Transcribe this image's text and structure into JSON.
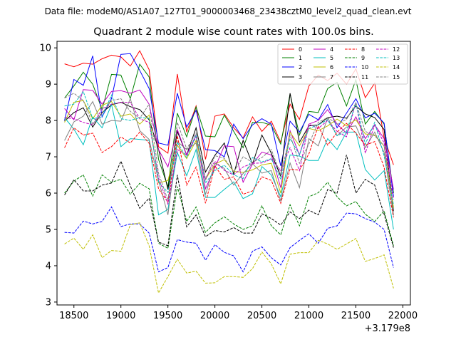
{
  "header": {
    "suptitle": "Data file: modeM0/AS1A07_127T01_9000003468_23438cztM0_level2_quad_clean.evt",
    "title": "Quadrant 2 module wise count rates with 100.0s bins."
  },
  "chart_data": {
    "type": "line",
    "title": "Quadrant 2 module wise count rates with 100.0s bins.",
    "xlabel": "",
    "ylabel": "",
    "x_offset_label": "+3.179e8",
    "xlim": [
      18320,
      22080
    ],
    "ylim": [
      2.92,
      10.18
    ],
    "grid": false,
    "legend_position": "top-right",
    "xticks": [
      18500,
      19000,
      19500,
      20000,
      20500,
      21000,
      21500,
      22000
    ],
    "xtick_labels": [
      "18500",
      "19000",
      "19500",
      "20000",
      "20500",
      "21000",
      "21500",
      "22000"
    ],
    "yticks": [
      3,
      4,
      5,
      6,
      7,
      8,
      9,
      10
    ],
    "ytick_labels": [
      "3",
      "4",
      "5",
      "6",
      "7",
      "8",
      "9",
      "10"
    ],
    "x": [
      18400,
      18500,
      18600,
      18700,
      18800,
      18900,
      19000,
      19100,
      19200,
      19300,
      19400,
      19500,
      19600,
      19700,
      19800,
      19900,
      20000,
      20100,
      20200,
      20300,
      20400,
      20500,
      20600,
      20700,
      20800,
      20900,
      21000,
      21100,
      21200,
      21300,
      21400,
      21500,
      21600,
      21700,
      21800,
      21900
    ],
    "series": [
      {
        "name": "0",
        "color": "#ff0000",
        "dash": "solid",
        "values": [
          9.56,
          9.48,
          9.58,
          9.55,
          9.7,
          9.8,
          9.75,
          9.5,
          9.92,
          9.4,
          7.28,
          7.1,
          9.28,
          7.68,
          8.4,
          6.93,
          8.12,
          8.18,
          7.8,
          7.52,
          8.1,
          7.7,
          7.98,
          7.4,
          8.45,
          8.03,
          8.95,
          9.25,
          9.1,
          9.3,
          9.0,
          9.42,
          8.63,
          9.03,
          7.52,
          6.78
        ]
      },
      {
        "name": "1",
        "color": "#008000",
        "dash": "solid",
        "values": [
          8.62,
          8.95,
          9.33,
          9.0,
          8.3,
          9.27,
          9.25,
          8.6,
          9.55,
          9.2,
          6.93,
          6.17,
          8.2,
          7.55,
          8.37,
          7.57,
          7.55,
          8.15,
          7.7,
          7.25,
          7.95,
          7.95,
          7.87,
          7.35,
          8.73,
          7.6,
          8.25,
          8.22,
          8.88,
          9.05,
          8.4,
          9.12,
          7.9,
          8.25,
          7.9,
          6.0
        ]
      },
      {
        "name": "2",
        "color": "#0000ff",
        "dash": "solid",
        "values": [
          8.0,
          9.13,
          8.97,
          9.78,
          8.1,
          8.6,
          9.82,
          9.84,
          9.38,
          8.88,
          7.38,
          7.32,
          8.75,
          7.82,
          8.28,
          7.2,
          7.17,
          7.0,
          7.9,
          7.5,
          7.88,
          8.05,
          7.9,
          6.75,
          7.98,
          7.68,
          8.17,
          8.02,
          8.44,
          7.8,
          8.2,
          8.6,
          8.07,
          8.2,
          7.93,
          5.9
        ]
      },
      {
        "name": "3",
        "color": "#000000",
        "dash": "solid",
        "values": [
          7.98,
          8.22,
          8.35,
          7.82,
          8.22,
          8.43,
          8.5,
          8.38,
          8.3,
          8.02,
          7.21,
          6.1,
          7.7,
          7.05,
          7.8,
          6.58,
          7.04,
          7.38,
          6.52,
          7.45,
          6.8,
          7.6,
          7.1,
          6.46,
          8.75,
          7.4,
          7.85,
          7.88,
          8.08,
          8.12,
          8.06,
          8.4,
          8.18,
          8.08,
          7.75,
          5.5
        ]
      },
      {
        "name": "4",
        "color": "#bf00bf",
        "dash": "solid",
        "values": [
          8.33,
          8.02,
          8.85,
          8.83,
          8.45,
          8.8,
          8.82,
          8.75,
          8.84,
          8.45,
          7.2,
          6.72,
          7.75,
          7.05,
          7.6,
          6.12,
          6.7,
          7.3,
          7.28,
          6.3,
          6.8,
          7.13,
          7.05,
          6.15,
          7.72,
          7.05,
          7.9,
          8.0,
          8.3,
          7.9,
          7.65,
          8.1,
          7.5,
          7.88,
          7.5,
          6.1
        ]
      },
      {
        "name": "5",
        "color": "#00bfbf",
        "dash": "solid",
        "values": [
          8.08,
          7.76,
          7.33,
          8.1,
          7.8,
          8.44,
          7.28,
          7.5,
          7.48,
          7.45,
          5.4,
          5.55,
          7.12,
          6.48,
          7.2,
          5.88,
          5.88,
          6.1,
          6.31,
          5.85,
          5.98,
          6.73,
          6.5,
          5.9,
          7.05,
          7.02,
          6.9,
          6.9,
          7.5,
          7.2,
          7.68,
          7.68,
          6.65,
          6.36,
          6.62,
          5.0
        ]
      },
      {
        "name": "6",
        "color": "#bfbf00",
        "dash": "solid",
        "values": [
          7.95,
          8.5,
          8.55,
          8.05,
          8.42,
          8.52,
          8.12,
          8.18,
          7.9,
          8.15,
          6.28,
          6.35,
          7.32,
          6.95,
          7.45,
          6.38,
          6.8,
          6.92,
          6.6,
          6.57,
          6.64,
          6.78,
          6.82,
          6.0,
          7.68,
          7.3,
          7.78,
          7.72,
          7.85,
          8.04,
          7.85,
          8.02,
          7.63,
          7.6,
          7.3,
          5.6
        ]
      },
      {
        "name": "7",
        "color": "#808080",
        "dash": "solid",
        "values": [
          7.45,
          7.96,
          8.12,
          8.52,
          7.9,
          8.0,
          7.98,
          8.6,
          7.72,
          7.48,
          6.35,
          5.4,
          7.42,
          7.2,
          7.38,
          5.96,
          6.82,
          6.68,
          6.22,
          6.54,
          6.81,
          6.55,
          6.62,
          5.78,
          6.83,
          6.15,
          7.5,
          7.3,
          8.08,
          7.58,
          7.82,
          7.85,
          7.25,
          7.68,
          7.12,
          5.38
        ]
      },
      {
        "name": "8",
        "color": "#ff0000",
        "dash": "dashed",
        "values": [
          7.25,
          7.8,
          7.6,
          7.65,
          7.12,
          7.28,
          7.55,
          7.38,
          7.68,
          7.37,
          6.12,
          5.75,
          7.58,
          6.22,
          6.72,
          5.72,
          6.75,
          6.38,
          6.45,
          5.97,
          6.06,
          6.45,
          6.35,
          5.72,
          6.66,
          6.63,
          7.08,
          7.85,
          7.32,
          7.68,
          7.92,
          7.65,
          7.32,
          7.42,
          6.71,
          5.33
        ]
      },
      {
        "name": "9",
        "color": "#008000",
        "dash": "dashed",
        "values": [
          6.0,
          6.33,
          6.5,
          5.92,
          6.5,
          6.3,
          6.38,
          5.97,
          6.27,
          6.12,
          4.62,
          4.48,
          6.18,
          5.22,
          5.62,
          4.92,
          5.18,
          5.35,
          5.15,
          5.0,
          5.1,
          5.65,
          5.1,
          4.85,
          5.68,
          5.1,
          5.9,
          6.01,
          6.3,
          5.9,
          5.65,
          5.77,
          5.42,
          5.22,
          5.51,
          4.55
        ]
      },
      {
        "name": "10",
        "color": "#0000ff",
        "dash": "dashed",
        "values": [
          4.92,
          4.9,
          5.23,
          5.15,
          5.22,
          5.62,
          5.08,
          5.15,
          5.15,
          4.9,
          3.83,
          3.95,
          4.72,
          4.65,
          4.62,
          4.15,
          4.58,
          4.37,
          4.27,
          3.83,
          4.4,
          4.52,
          4.22,
          4.02,
          4.5,
          4.7,
          4.88,
          4.62,
          5.03,
          5.1,
          5.45,
          5.43,
          5.3,
          5.2,
          5.0,
          3.95
        ]
      },
      {
        "name": "11",
        "color": "#000000",
        "dash": "dashed",
        "values": [
          5.95,
          6.37,
          6.06,
          6.06,
          6.22,
          6.28,
          6.88,
          6.2,
          5.58,
          5.86,
          4.65,
          4.55,
          6.5,
          5.07,
          5.4,
          4.8,
          4.97,
          4.93,
          5.05,
          4.9,
          4.9,
          5.43,
          5.3,
          5.12,
          5.48,
          5.3,
          5.53,
          5.4,
          6.1,
          6.0,
          7.05,
          6.0,
          6.38,
          6.22,
          5.42,
          4.5
        ]
      },
      {
        "name": "12",
        "color": "#bf00bf",
        "dash": "dashed",
        "values": [
          8.08,
          8.05,
          7.95,
          7.88,
          8.32,
          8.45,
          8.5,
          8.5,
          8.05,
          7.95,
          6.42,
          5.7,
          7.2,
          7.05,
          7.55,
          6.4,
          6.88,
          6.63,
          6.5,
          6.72,
          6.82,
          6.83,
          6.93,
          6.62,
          7.25,
          6.62,
          7.9,
          7.78,
          8.0,
          7.7,
          7.55,
          8.5,
          7.1,
          7.88,
          7.38,
          5.82
        ]
      },
      {
        "name": "13",
        "color": "#00bfbf",
        "dash": "dashed",
        "values": [
          8.4,
          8.45,
          8.8,
          8.05,
          8.1,
          8.7,
          8.05,
          8.0,
          8.08,
          8.06,
          6.3,
          6.02,
          7.4,
          6.98,
          7.6,
          6.28,
          6.62,
          6.77,
          6.5,
          6.4,
          6.98,
          6.86,
          6.95,
          6.38,
          7.5,
          7.06,
          7.78,
          7.88,
          8.02,
          7.58,
          7.7,
          8.48,
          7.35,
          7.95,
          7.02,
          5.68
        ]
      },
      {
        "name": "14",
        "color": "#bfbf00",
        "dash": "dashed",
        "values": [
          4.6,
          4.76,
          4.45,
          4.85,
          4.22,
          4.42,
          4.4,
          5.13,
          5.18,
          4.55,
          3.25,
          3.7,
          4.18,
          3.8,
          3.85,
          3.52,
          3.53,
          3.7,
          3.7,
          3.68,
          3.92,
          4.38,
          4.05,
          3.5,
          4.32,
          4.36,
          4.36,
          4.7,
          4.6,
          4.45,
          4.6,
          4.75,
          4.12,
          4.2,
          4.3,
          3.38
        ]
      },
      {
        "name": "15",
        "color": "#808080",
        "dash": "dashed",
        "values": [
          8.62,
          8.75,
          8.55,
          7.9,
          8.2,
          8.55,
          8.6,
          8.25,
          8.06,
          8.45,
          6.55,
          5.8,
          7.95,
          7.22,
          7.65,
          6.35,
          7.03,
          6.96,
          6.58,
          7.0,
          6.85,
          6.98,
          7.2,
          6.5,
          7.6,
          6.82,
          7.35,
          7.95,
          8.08,
          7.9,
          8.03,
          8.48,
          7.7,
          7.58,
          7.3,
          5.4
        ]
      }
    ]
  }
}
